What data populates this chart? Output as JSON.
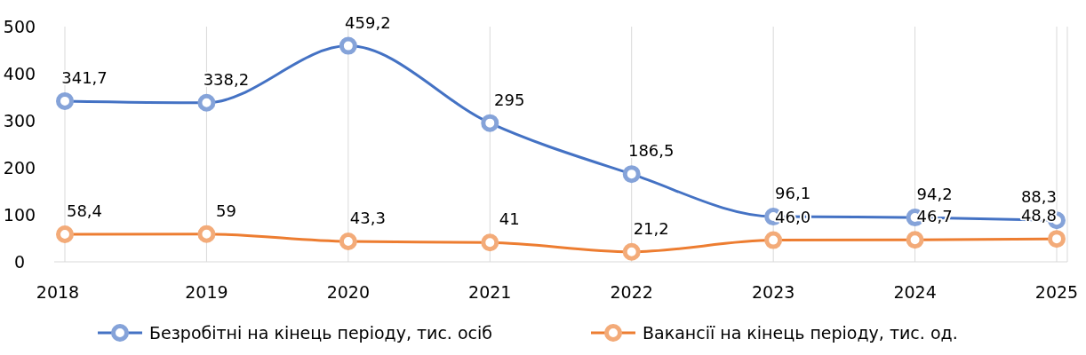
{
  "chart_data": {
    "type": "line",
    "categories": [
      "2018",
      "2019",
      "2020",
      "2021",
      "2022",
      "2023",
      "2024",
      "2025"
    ],
    "series": [
      {
        "name": "Безробітні на кінець періоду, тис. осіб",
        "color": "#4472c4",
        "values": [
          341.7,
          338.2,
          459.2,
          295,
          186.5,
          96.1,
          94.2,
          88.3
        ],
        "value_labels": [
          "341,7",
          "338,2",
          "459,2",
          "295",
          "186,5",
          "96,1",
          "94,2",
          "88,3"
        ]
      },
      {
        "name": "Вакансії на кінець періоду, тис. од.",
        "color": "#ed7d31",
        "values": [
          58.4,
          59,
          43.3,
          41,
          21.2,
          46.0,
          46.7,
          48.8
        ],
        "value_labels": [
          "58,4",
          "59",
          "43,3",
          "41",
          "21,2",
          "46,0",
          "46,7",
          "48,8"
        ]
      }
    ],
    "ylim": [
      0,
      500
    ],
    "yticks": [
      0,
      100,
      200,
      300,
      400,
      500
    ],
    "grid": "x",
    "legend": "bottom",
    "marker": "circle",
    "line_style": "solid"
  }
}
